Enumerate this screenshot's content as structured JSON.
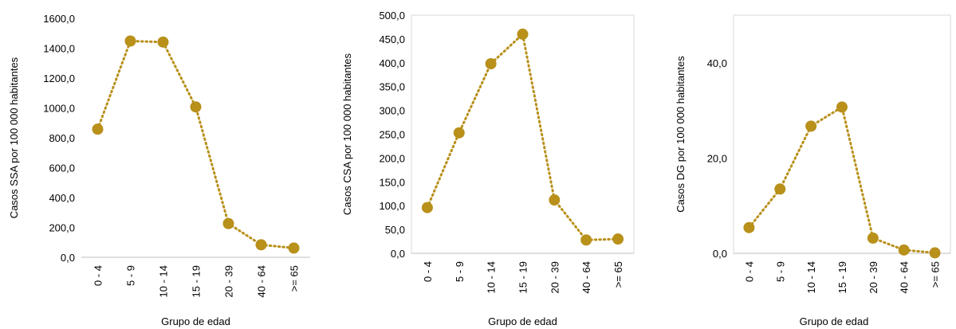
{
  "chart_data": [
    {
      "type": "line",
      "title": "",
      "categories": [
        "0 - 4",
        "5 - 9",
        "10 - 14",
        "15 - 19",
        "20 - 39",
        "40 - 64",
        ">= 65"
      ],
      "series": [
        {
          "values": [
            858,
            1448,
            1441,
            1007,
            226,
            84,
            62
          ]
        }
      ],
      "xlabel": "Grupo de edad",
      "ylabel": "Casos SSA por 100 000 habitantes",
      "ylim": [
        0,
        1600
      ],
      "yticks": [
        "0,0",
        "200,0",
        "400,0",
        "600,0",
        "800,0",
        "1000,0",
        "1200,0",
        "1400,0",
        "1600,0"
      ],
      "ytick_values": [
        0,
        200,
        400,
        600,
        800,
        1000,
        1200,
        1400,
        1600
      ],
      "grid": false,
      "frame": false
    },
    {
      "type": "line",
      "title": "",
      "categories": [
        "0 - 4",
        "5 - 9",
        "10 - 14",
        "15 - 19",
        "20 - 39",
        "40 - 64",
        ">= 65"
      ],
      "series": [
        {
          "values": [
            96,
            253,
            398,
            460,
            112,
            28,
            30
          ]
        }
      ],
      "xlabel": "Grupo de edad",
      "ylabel": "Casos CSA por 100 000 habitantes",
      "ylim": [
        0,
        500
      ],
      "yticks": [
        "0,0",
        "50,0",
        "100,0",
        "150,0",
        "200,0",
        "250,0",
        "300,0",
        "350,0",
        "400,0",
        "450,0",
        "500,0"
      ],
      "ytick_values": [
        0,
        50,
        100,
        150,
        200,
        250,
        300,
        350,
        400,
        450,
        500
      ],
      "grid": false,
      "frame": true
    },
    {
      "type": "line",
      "title": "",
      "categories": [
        "0 - 4",
        "5 - 9",
        "10 - 14",
        "15 - 19",
        "20 - 39",
        "40 - 64",
        ">= 65"
      ],
      "series": [
        {
          "values": [
            5.4,
            13.5,
            26.7,
            30.7,
            3.2,
            0.7,
            0.1
          ]
        }
      ],
      "xlabel": "Grupo de edad",
      "ylabel": "Casos DG por 100 000 habitantes",
      "ylim": [
        0,
        50
      ],
      "yticks": [
        "0,0",
        "20,0",
        "40,0"
      ],
      "ytick_values": [
        0,
        20,
        40
      ],
      "grid": false,
      "frame": true
    }
  ],
  "style": {
    "series_color": "#B8901A",
    "frame_color": "#D9D9D9",
    "axis_color": "#BFBFBF"
  }
}
